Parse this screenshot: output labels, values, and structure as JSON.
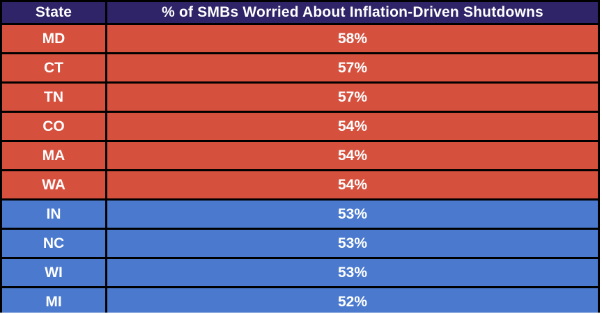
{
  "table": {
    "header": {
      "state_label": "State",
      "value_label": "% of SMBs Worried About Inflation-Driven Shutdowns"
    },
    "rows": [
      {
        "state": "MD",
        "value": "58%",
        "group": "red"
      },
      {
        "state": "CT",
        "value": "57%",
        "group": "red"
      },
      {
        "state": "TN",
        "value": "57%",
        "group": "red"
      },
      {
        "state": "CO",
        "value": "54%",
        "group": "red"
      },
      {
        "state": "MA",
        "value": "54%",
        "group": "red"
      },
      {
        "state": "WA",
        "value": "54%",
        "group": "red"
      },
      {
        "state": "IN",
        "value": "53%",
        "group": "blue"
      },
      {
        "state": "NC",
        "value": "53%",
        "group": "blue"
      },
      {
        "state": "WI",
        "value": "53%",
        "group": "blue"
      },
      {
        "state": "MI",
        "value": "52%",
        "group": "blue"
      }
    ],
    "colors": {
      "header_bg": "#2e2467",
      "red_row": "#d6503e",
      "blue_row": "#4a79ce",
      "border": "#000000",
      "text": "#ffffff"
    }
  },
  "chart_data": {
    "type": "table",
    "title": "% of SMBs Worried About Inflation-Driven Shutdowns",
    "columns": [
      "State",
      "% of SMBs Worried About Inflation-Driven Shutdowns"
    ],
    "categories": [
      "MD",
      "CT",
      "TN",
      "CO",
      "MA",
      "WA",
      "IN",
      "NC",
      "WI",
      "MI"
    ],
    "values": [
      58,
      57,
      57,
      54,
      54,
      54,
      53,
      53,
      53,
      52
    ],
    "row_color_groups": [
      "red",
      "red",
      "red",
      "red",
      "red",
      "red",
      "blue",
      "blue",
      "blue",
      "blue"
    ],
    "legend_position": "none",
    "grid": true
  }
}
